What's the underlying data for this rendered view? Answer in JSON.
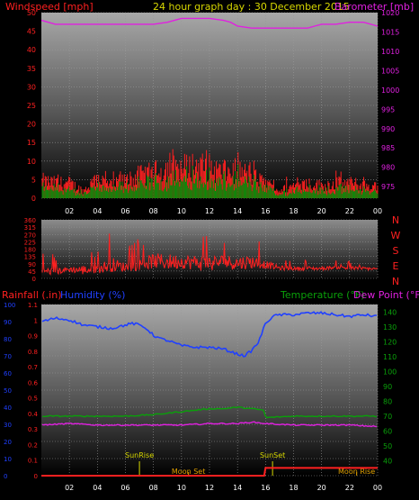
{
  "header": {
    "left": "Windspeed [mph]",
    "center": "24 hour graph day : 30 December 2015",
    "right": "Barometer [mb]"
  },
  "colors": {
    "red": "#ff2020",
    "green": "#0a8a0a",
    "magenta": "#e020e0",
    "blue": "#2040ff",
    "yellow": "#d8d800",
    "orange": "#e0a000",
    "darkgreen": "#0aa00a"
  },
  "time_ticks": [
    "02",
    "04",
    "06",
    "08",
    "10",
    "12",
    "14",
    "16",
    "18",
    "20",
    "22",
    "00"
  ],
  "chart_data": [
    {
      "type": "line",
      "name": "wind-barometer",
      "y_left": {
        "label": "Windspeed [mph]",
        "lim": [
          0,
          50
        ],
        "ticks": [
          0,
          5,
          10,
          15,
          20,
          25,
          30,
          35,
          40,
          45,
          50
        ]
      },
      "y_right": {
        "label": "Barometer [mb]",
        "lim": [
          972,
          1020
        ],
        "ticks": [
          975,
          980,
          985,
          990,
          995,
          1000,
          1005,
          1010,
          1015,
          1020
        ]
      },
      "x_hours": [
        0,
        24
      ],
      "barometer": {
        "x": [
          0,
          0.5,
          1,
          2,
          3,
          4,
          5,
          6,
          7,
          8,
          9,
          9.5,
          10,
          11,
          12,
          13,
          13.5,
          14,
          15,
          16,
          17,
          18,
          19,
          19.5,
          20,
          21,
          22,
          23,
          24
        ],
        "y": [
          1018,
          1017.5,
          1017,
          1017,
          1017,
          1017,
          1017,
          1017,
          1017,
          1017,
          1017.5,
          1018,
          1018.5,
          1018.5,
          1018.5,
          1018,
          1017.5,
          1016.5,
          1016,
          1016,
          1016,
          1016,
          1016,
          1016.5,
          1017,
          1017,
          1017.5,
          1017.5,
          1016.5
        ]
      },
      "wind_gust_envelope": {
        "x": [
          0,
          1,
          2,
          3,
          4,
          5,
          6,
          7,
          8,
          9,
          10,
          11,
          12,
          13,
          14,
          15,
          16,
          17,
          18,
          19,
          20,
          21,
          22,
          23,
          24
        ],
        "y": [
          7,
          6,
          6,
          3,
          8,
          5,
          7,
          9,
          10,
          12,
          12,
          13,
          12,
          10,
          11,
          9,
          6,
          3,
          5,
          6,
          5,
          6,
          6,
          5,
          5
        ]
      }
    },
    {
      "type": "line",
      "name": "wind-direction",
      "y_left": {
        "lim": [
          0,
          360
        ],
        "ticks": [
          0,
          45,
          90,
          135,
          180,
          225,
          270,
          315,
          360
        ]
      },
      "y_right_labels": [
        "N",
        "W",
        "S",
        "E",
        "N"
      ],
      "direction_envelope": {
        "x": [
          0,
          1,
          2,
          3,
          4,
          5,
          6,
          7,
          8,
          9,
          10,
          11,
          12,
          13,
          14,
          15,
          16,
          17,
          18,
          19,
          20,
          21,
          22,
          23,
          24
        ],
        "y_high": [
          160,
          150,
          130,
          200,
          180,
          300,
          200,
          250,
          330,
          340,
          310,
          320,
          330,
          310,
          300,
          300,
          200,
          130,
          110,
          120,
          110,
          110,
          120,
          110,
          100
        ],
        "y_low": [
          20,
          20,
          40,
          20,
          30,
          40,
          40,
          50,
          60,
          50,
          60,
          50,
          40,
          60,
          50,
          60,
          60,
          50,
          50,
          50,
          50,
          60,
          50,
          50,
          50
        ]
      }
    },
    {
      "type": "line",
      "name": "rain-humidity-temperature",
      "labels": {
        "rain": "Rainfall (.in)",
        "humidity": "Humidity (%)",
        "temperature": "Temperature (°F)",
        "dewpoint": "Dew Point (°F)"
      },
      "y_humidity": {
        "lim": [
          0,
          100
        ],
        "ticks": [
          0,
          10,
          20,
          30,
          40,
          50,
          60,
          70,
          80,
          90,
          100
        ]
      },
      "y_rain": {
        "lim": [
          0,
          1.1
        ],
        "ticks": [
          "0",
          "0.1",
          "0.2",
          "0.3",
          "0.4",
          "0.5",
          "0.6",
          "0.7",
          "0.8",
          "0.9",
          "1",
          "1.1"
        ]
      },
      "y_temp": {
        "lim": [
          30,
          145
        ],
        "ticks": [
          40,
          50,
          60,
          70,
          80,
          90,
          100,
          110,
          120,
          130,
          140
        ]
      },
      "humidity": {
        "x": [
          0,
          0.5,
          1,
          2,
          3,
          4,
          5,
          6,
          6.5,
          7,
          7.5,
          8,
          8.5,
          9,
          10,
          11,
          12,
          13,
          14,
          14.5,
          15,
          15.5,
          16,
          16.5,
          17,
          18,
          19,
          20,
          21,
          22,
          23,
          24
        ],
        "y": [
          90,
          91,
          92,
          91,
          88,
          87,
          86,
          88,
          89,
          88,
          86,
          82,
          80,
          79,
          76,
          75,
          75,
          74,
          71,
          70,
          73,
          78,
          89,
          93,
          94,
          94,
          95,
          95,
          94,
          93,
          94,
          93
        ]
      },
      "temperature": {
        "x": [
          0,
          2,
          4,
          6,
          8,
          9,
          10,
          11,
          12,
          13,
          14,
          15,
          15.9,
          16,
          18,
          20,
          22,
          24
        ],
        "y": [
          70,
          70,
          70,
          70,
          71,
          72,
          73,
          74,
          75,
          75,
          76,
          75,
          74,
          69,
          70,
          70,
          70,
          70
        ]
      },
      "dewpoint": {
        "x": [
          0,
          2,
          4,
          6,
          8,
          10,
          12,
          14,
          15,
          16,
          18,
          20,
          22,
          24
        ],
        "y": [
          64,
          65,
          64,
          64,
          64,
          64,
          65,
          65,
          66,
          65,
          64,
          64,
          64,
          63
        ]
      },
      "rainfall": {
        "x": [
          0,
          15.9,
          16,
          24
        ],
        "y": [
          0,
          0,
          0.05,
          0.05
        ]
      },
      "events": [
        {
          "label": "SunRise",
          "hour": 7
        },
        {
          "label": "Moon Set",
          "hour": 10.5
        },
        {
          "label": "SunSet",
          "hour": 16.5
        },
        {
          "label": "Moon Rise",
          "hour": 22.5
        }
      ]
    }
  ]
}
